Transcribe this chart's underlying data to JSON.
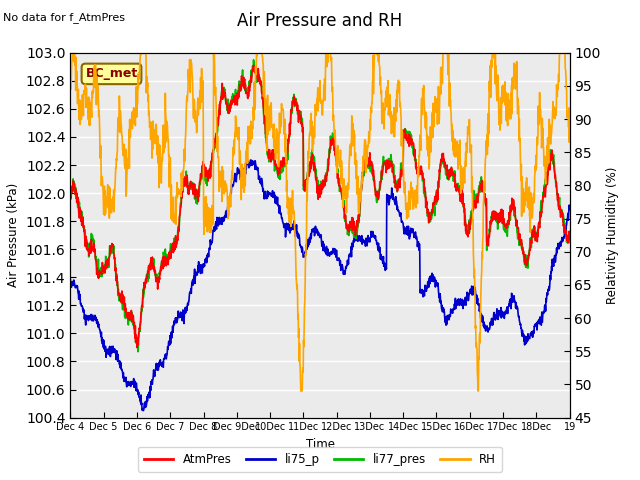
{
  "title": "Air Pressure and RH",
  "subtitle": "No data for f_AtmPres",
  "xlabel": "Time",
  "ylabel_left": "Air Pressure (kPa)",
  "ylabel_right": "Relativity Humidity (%)",
  "legend_label": "BC_met",
  "ylim_left": [
    100.4,
    103.0
  ],
  "ylim_right": [
    45,
    100
  ],
  "yticks_left": [
    100.4,
    100.6,
    100.8,
    101.0,
    101.2,
    101.4,
    101.6,
    101.8,
    102.0,
    102.2,
    102.4,
    102.6,
    102.8,
    103.0
  ],
  "yticks_right": [
    45,
    50,
    55,
    60,
    65,
    70,
    75,
    80,
    85,
    90,
    95,
    100
  ],
  "line_colors": {
    "AtmPres": "#FF0000",
    "li75_p": "#0000CC",
    "li77_pres": "#00BB00",
    "RH": "#FFA500"
  },
  "line_widths": {
    "AtmPres": 1.2,
    "li75_p": 1.2,
    "li77_pres": 1.2,
    "RH": 1.2
  },
  "background_color": "#FFFFFF",
  "plot_bg_color": "#EBEBEB",
  "grid_color": "#FFFFFF",
  "bc_met_box_color": "#FFFF99",
  "bc_met_edge_color": "#886600"
}
